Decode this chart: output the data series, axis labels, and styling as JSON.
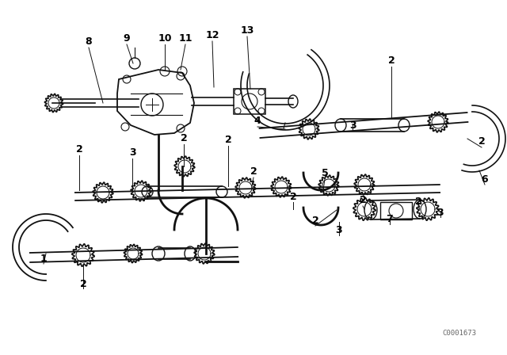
{
  "bg_color": "#ffffff",
  "line_color": "#111111",
  "label_color": "#000000",
  "catalog_number": "C0001673",
  "figsize": [
    6.4,
    4.48
  ],
  "dpi": 100,
  "labels": [
    [
      "8",
      112,
      52
    ],
    [
      "9",
      160,
      48
    ],
    [
      "10",
      208,
      48
    ],
    [
      "11",
      232,
      48
    ],
    [
      "12",
      268,
      46
    ],
    [
      "13",
      312,
      42
    ],
    [
      "4",
      356,
      148
    ],
    [
      "2",
      496,
      82
    ],
    [
      "3",
      448,
      168
    ],
    [
      "2",
      100,
      186
    ],
    [
      "3",
      168,
      194
    ],
    [
      "2",
      232,
      178
    ],
    [
      "2",
      288,
      178
    ],
    [
      "2",
      320,
      222
    ],
    [
      "2",
      368,
      246
    ],
    [
      "2",
      396,
      282
    ],
    [
      "3",
      430,
      294
    ],
    [
      "2",
      460,
      256
    ],
    [
      "5",
      412,
      222
    ],
    [
      "7",
      494,
      278
    ],
    [
      "2",
      530,
      258
    ],
    [
      "3",
      558,
      272
    ],
    [
      "2",
      610,
      184
    ],
    [
      "6",
      610,
      230
    ],
    [
      "1",
      58,
      320
    ],
    [
      "2",
      108,
      356
    ]
  ]
}
